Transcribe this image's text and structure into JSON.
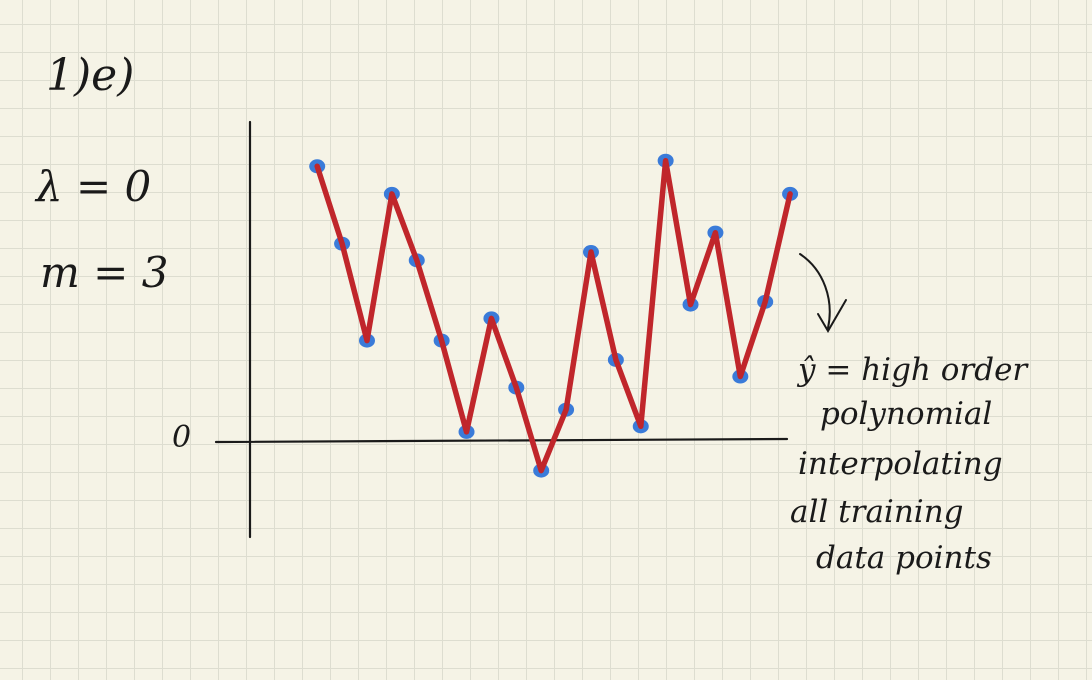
{
  "labels": {
    "part": "1)e)",
    "lambda": "λ = 0",
    "m": "m = 3",
    "zero": "0"
  },
  "annotation": {
    "line1": "ŷ = high order",
    "line2": "polynomial",
    "line3": "interpolating",
    "line4": "all training",
    "line5": "data points"
  },
  "colors": {
    "ink": "#1a1a1a",
    "curve": "#c0262b",
    "points": "#3a7bd9"
  },
  "chart_data": {
    "type": "line",
    "points": [
      {
        "x": 0,
        "y": 10
      },
      {
        "x": 1,
        "y": 7.2
      },
      {
        "x": 2,
        "y": 3.7
      },
      {
        "x": 3,
        "y": 9.0
      },
      {
        "x": 4,
        "y": 6.6
      },
      {
        "x": 5,
        "y": 3.7
      },
      {
        "x": 6,
        "y": 0.4
      },
      {
        "x": 7,
        "y": 4.5
      },
      {
        "x": 8,
        "y": 2.0
      },
      {
        "x": 9,
        "y": -1.0
      },
      {
        "x": 10,
        "y": 1.2
      },
      {
        "x": 11,
        "y": 6.9
      },
      {
        "x": 12,
        "y": 3.0
      },
      {
        "x": 13,
        "y": 0.6
      },
      {
        "x": 14,
        "y": 10.2
      },
      {
        "x": 15,
        "y": 5.0
      },
      {
        "x": 16,
        "y": 7.6
      },
      {
        "x": 17,
        "y": 2.4
      },
      {
        "x": 18,
        "y": 5.1
      },
      {
        "x": 19,
        "y": 9.0
      }
    ],
    "fit_curve": [
      {
        "x": 0,
        "y": 10
      },
      {
        "x": 1,
        "y": 7.2
      },
      {
        "x": 2,
        "y": 3.7
      },
      {
        "x": 3,
        "y": 9.0
      },
      {
        "x": 4,
        "y": 6.6
      },
      {
        "x": 5,
        "y": 3.7
      },
      {
        "x": 6,
        "y": 0.4
      },
      {
        "x": 7,
        "y": 4.5
      },
      {
        "x": 8,
        "y": 2.0
      },
      {
        "x": 9,
        "y": -1.0
      },
      {
        "x": 10,
        "y": 1.2
      },
      {
        "x": 11,
        "y": 6.9
      },
      {
        "x": 12,
        "y": 3.0
      },
      {
        "x": 13,
        "y": 0.6
      },
      {
        "x": 14,
        "y": 10.2
      },
      {
        "x": 15,
        "y": 5.0
      },
      {
        "x": 16,
        "y": 7.6
      },
      {
        "x": 17,
        "y": 2.4
      },
      {
        "x": 18,
        "y": 5.1
      },
      {
        "x": 19,
        "y": 9.0
      }
    ],
    "ylim": [
      -3.4,
      11.6
    ],
    "xlim": [
      -2.7,
      19.8
    ],
    "yticks": [
      "0"
    ],
    "grid": false
  }
}
